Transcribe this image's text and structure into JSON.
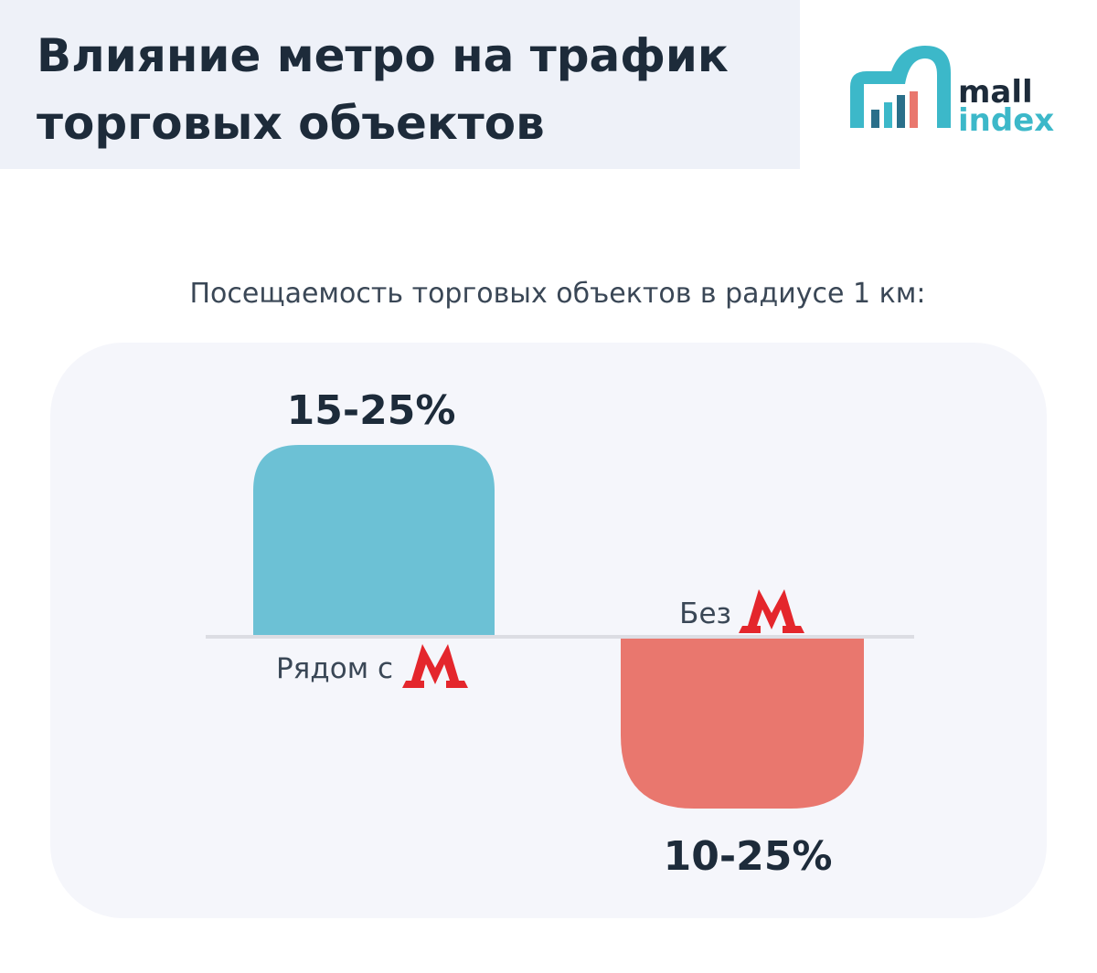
{
  "header": {
    "title_lines": [
      "Влияние метро на трафик",
      "торговых объектов"
    ]
  },
  "logo": {
    "line1": "mall",
    "line2": "index"
  },
  "subtitle": "Посещаемость торговых объектов в радиусе 1 км:",
  "bars": [
    {
      "label": "15-25%",
      "caption": "Рядом с"
    },
    {
      "label": "10-25%",
      "caption": "Без"
    }
  ]
}
